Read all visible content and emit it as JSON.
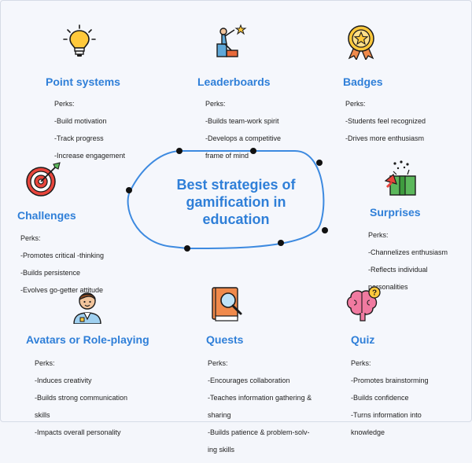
{
  "center": {
    "title_line1": "Best strategies of",
    "title_line2": "gamification in",
    "title_line3": "education"
  },
  "strategies": [
    {
      "title": "Point systems",
      "perks_label": "Perks:",
      "perks": [
        "-Build motivation",
        "-Track progress",
        "-Increase engagement"
      ],
      "icon": "lightbulb-icon"
    },
    {
      "title": "Leaderboards",
      "perks_label": "Perks:",
      "perks": [
        "-Builds team-work spirit",
        "-Develops a competitive",
        "frame of mind"
      ],
      "icon": "climbing-person-icon"
    },
    {
      "title": "Badges",
      "perks_label": "Perks:",
      "perks": [
        "-Students feel recognized",
        "-Drives more enthusiasm"
      ],
      "icon": "badge-star-icon"
    },
    {
      "title": "Challenges",
      "perks_label": "Perks:",
      "perks": [
        "-Promotes critical -thinking",
        "-Builds persistence",
        "-Evolves go-getter attitude"
      ],
      "icon": "target-icon"
    },
    {
      "title": "Surprises",
      "perks_label": "Perks:",
      "perks": [
        "-Channelizes enthusiasm",
        "-Reflects individual",
        "personalities"
      ],
      "icon": "gift-icon"
    },
    {
      "title": "Avatars or Role-playing",
      "perks_label": "Perks:",
      "perks": [
        "-Induces creativity",
        "-Builds strong communication",
        "skills",
        "-Impacts overall personality"
      ],
      "icon": "avatar-icon"
    },
    {
      "title": "Quests",
      "perks_label": "Perks:",
      "perks": [
        "-Encourages collaboration",
        "-Teaches information gathering &",
        "sharing",
        "-Builds patience & problem-solv-",
        "ing skills"
      ],
      "icon": "book-search-icon"
    },
    {
      "title": "Quiz",
      "perks_label": "Perks:",
      "perks": [
        "-Promotes brainstorming",
        "-Builds confidence",
        "-Turns information into",
        "knowledge"
      ],
      "icon": "brain-question-icon"
    }
  ],
  "colors": {
    "accent": "#2f7fd8",
    "background": "#f5f7fc",
    "text": "#222222"
  }
}
